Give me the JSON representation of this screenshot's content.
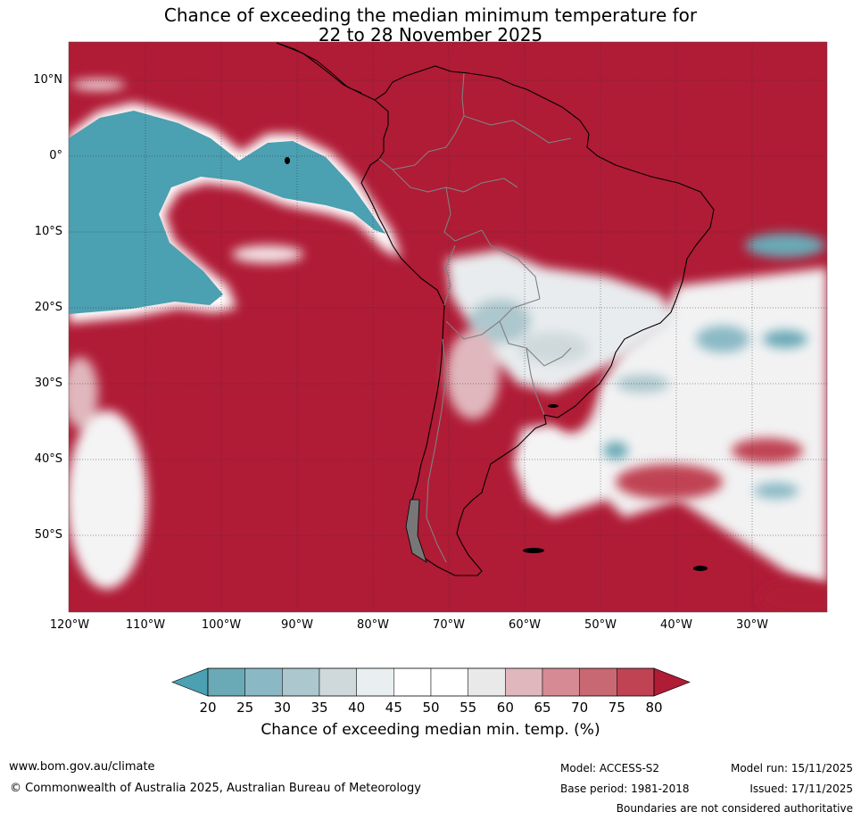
{
  "title_line1": "Chance of exceeding the median minimum temperature for",
  "title_line2": "22 to 28 November 2025",
  "map": {
    "region": "South America and surrounding oceans",
    "lat_labels": [
      "10°N",
      "0°",
      "10°S",
      "20°S",
      "30°S",
      "40°S",
      "50°S"
    ],
    "lon_labels": [
      "120°W",
      "110°W",
      "100°W",
      "90°W",
      "80°W",
      "70°W",
      "60°W",
      "50°W",
      "40°W",
      "30°W"
    ],
    "colors": {
      "high_chance": "#b01b36",
      "low_chance": "#4ba0b1",
      "near_median": "#ffffff",
      "coastline": "#000000",
      "borders": "#808080",
      "gridlines": "#333333"
    }
  },
  "colorbar": {
    "ticks": [
      "20",
      "25",
      "30",
      "35",
      "40",
      "45",
      "50",
      "55",
      "60",
      "65",
      "70",
      "75",
      "80"
    ],
    "colors": [
      "#4ba0b1",
      "#6aa9b6",
      "#8ab9c5",
      "#acc7cd",
      "#cfd9dc",
      "#e9eff1",
      "#ffffff",
      "#ffffff",
      "#eae9ea",
      "#e0b7bd",
      "#d58a94",
      "#c86872",
      "#c04353",
      "#b01b36"
    ],
    "label": "Chance of exceeding median min. temp. (%)"
  },
  "footer": {
    "website": "www.bom.gov.au/climate",
    "copyright": "© Commonwealth of Australia 2025, Australian Bureau of Meteorology",
    "model": "Model: ACCESS-S2",
    "base_period": "Base period: 1981-2018",
    "model_run": "Model run: 15/11/2025",
    "issued": "Issued: 17/11/2025",
    "disclaimer": "Boundaries are not considered authoritative"
  }
}
